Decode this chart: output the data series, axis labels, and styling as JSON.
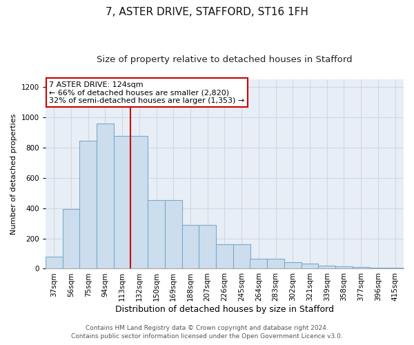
{
  "title": "7, ASTER DRIVE, STAFFORD, ST16 1FH",
  "subtitle": "Size of property relative to detached houses in Stafford",
  "xlabel": "Distribution of detached houses by size in Stafford",
  "ylabel": "Number of detached properties",
  "categories": [
    "37sqm",
    "56sqm",
    "75sqm",
    "94sqm",
    "113sqm",
    "132sqm",
    "150sqm",
    "169sqm",
    "188sqm",
    "207sqm",
    "226sqm",
    "245sqm",
    "264sqm",
    "283sqm",
    "302sqm",
    "321sqm",
    "339sqm",
    "358sqm",
    "377sqm",
    "396sqm",
    "415sqm"
  ],
  "values": [
    80,
    395,
    845,
    960,
    875,
    875,
    455,
    455,
    290,
    290,
    160,
    160,
    68,
    68,
    45,
    32,
    22,
    15,
    10,
    8,
    8
  ],
  "bar_color": "#ccdded",
  "bar_edge_color": "#7aaacc",
  "grid_color": "#d0d8e4",
  "vline_x": 5.0,
  "vline_color": "#cc0000",
  "annotation_text": "7 ASTER DRIVE: 124sqm\n← 66% of detached houses are smaller (2,820)\n32% of semi-detached houses are larger (1,353) →",
  "annotation_box_color": "#ffffff",
  "annotation_box_edge": "#cc0000",
  "footer1": "Contains HM Land Registry data © Crown copyright and database right 2024.",
  "footer2": "Contains public sector information licensed under the Open Government Licence v3.0.",
  "ylim": [
    0,
    1250
  ],
  "yticks": [
    0,
    200,
    400,
    600,
    800,
    1000,
    1200
  ],
  "fig_bg_color": "#ffffff",
  "plot_bg_color": "#e8eef5",
  "title_fontsize": 11,
  "subtitle_fontsize": 9.5,
  "xlabel_fontsize": 9,
  "ylabel_fontsize": 8,
  "tick_fontsize": 7.5,
  "annot_fontsize": 8,
  "footer_fontsize": 6.5
}
